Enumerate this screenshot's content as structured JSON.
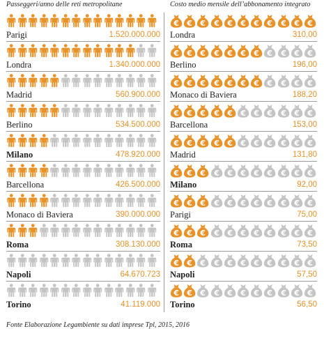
{
  "colors": {
    "orange": "#e8922a",
    "gray": "#c4c4c4",
    "rule": "#9a9a9a"
  },
  "icons": {
    "left": "person-icon",
    "right": "euro-money-bag-icon"
  },
  "chart_data": [
    {
      "type": "table",
      "title": "Passeggeri/anno delle reti metropolitane",
      "icons_per_row": 14,
      "rows": [
        {
          "city": "Parigi",
          "value": "1.520.000.000",
          "numeric": 1520000000,
          "filled": 14,
          "bold": false
        },
        {
          "city": "Londra",
          "value": "1.340.000.000",
          "numeric": 1340000000,
          "filled": 12,
          "bold": false
        },
        {
          "city": "Madrid",
          "value": "560.900.000",
          "numeric": 560900000,
          "filled": 5,
          "bold": false
        },
        {
          "city": "Berlino",
          "value": "534.500.000",
          "numeric": 534500000,
          "filled": 5,
          "bold": false
        },
        {
          "city": "Milano",
          "value": "478.920.000",
          "numeric": 478920000,
          "filled": 4,
          "bold": true
        },
        {
          "city": "Barcellona",
          "value": "426.500.000",
          "numeric": 426500000,
          "filled": 4,
          "bold": false
        },
        {
          "city": "Monaco di Baviera",
          "value": "390.000.000",
          "numeric": 390000000,
          "filled": 4,
          "bold": false
        },
        {
          "city": "Roma",
          "value": "308.130.000",
          "numeric": 308130000,
          "filled": 3,
          "bold": true
        },
        {
          "city": "Napoli",
          "value": "64.670.723",
          "numeric": 64670723,
          "filled": 0,
          "bold": true
        },
        {
          "city": "Torino",
          "value": "41.119.000",
          "numeric": 41119000,
          "filled": 0,
          "bold": true
        }
      ]
    },
    {
      "type": "table",
      "title": "Costo medio mensile dell’abbonamento integrato",
      "icons_per_row": 11,
      "rows": [
        {
          "city": "Londra",
          "value": "310,00",
          "numeric": 310.0,
          "filled": 11,
          "bold": false
        },
        {
          "city": "Berlino",
          "value": "196,00",
          "numeric": 196.0,
          "filled": 7,
          "bold": false
        },
        {
          "city": "Monaco di Baviera",
          "value": "188,20",
          "numeric": 188.2,
          "filled": 7,
          "bold": false
        },
        {
          "city": "Barcellona",
          "value": "153,00",
          "numeric": 153.0,
          "filled": 5,
          "bold": false
        },
        {
          "city": "Madrid",
          "value": "131,80",
          "numeric": 131.8,
          "filled": 5,
          "bold": false
        },
        {
          "city": "Milano",
          "value": "92,00",
          "numeric": 92.0,
          "filled": 3,
          "bold": true
        },
        {
          "city": "Parigi",
          "value": "75,00",
          "numeric": 75.0,
          "filled": 3,
          "bold": false
        },
        {
          "city": "Roma",
          "value": "73,50",
          "numeric": 73.5,
          "filled": 3,
          "bold": true
        },
        {
          "city": "Napoli",
          "value": "57,50",
          "numeric": 57.5,
          "filled": 2,
          "bold": true
        },
        {
          "city": "Torino",
          "value": "56,50",
          "numeric": 56.5,
          "filled": 2,
          "bold": true
        }
      ]
    }
  ],
  "source": "Fonte Elaborazione Legambiente su dati imprese Tpl, 2015, 2016"
}
